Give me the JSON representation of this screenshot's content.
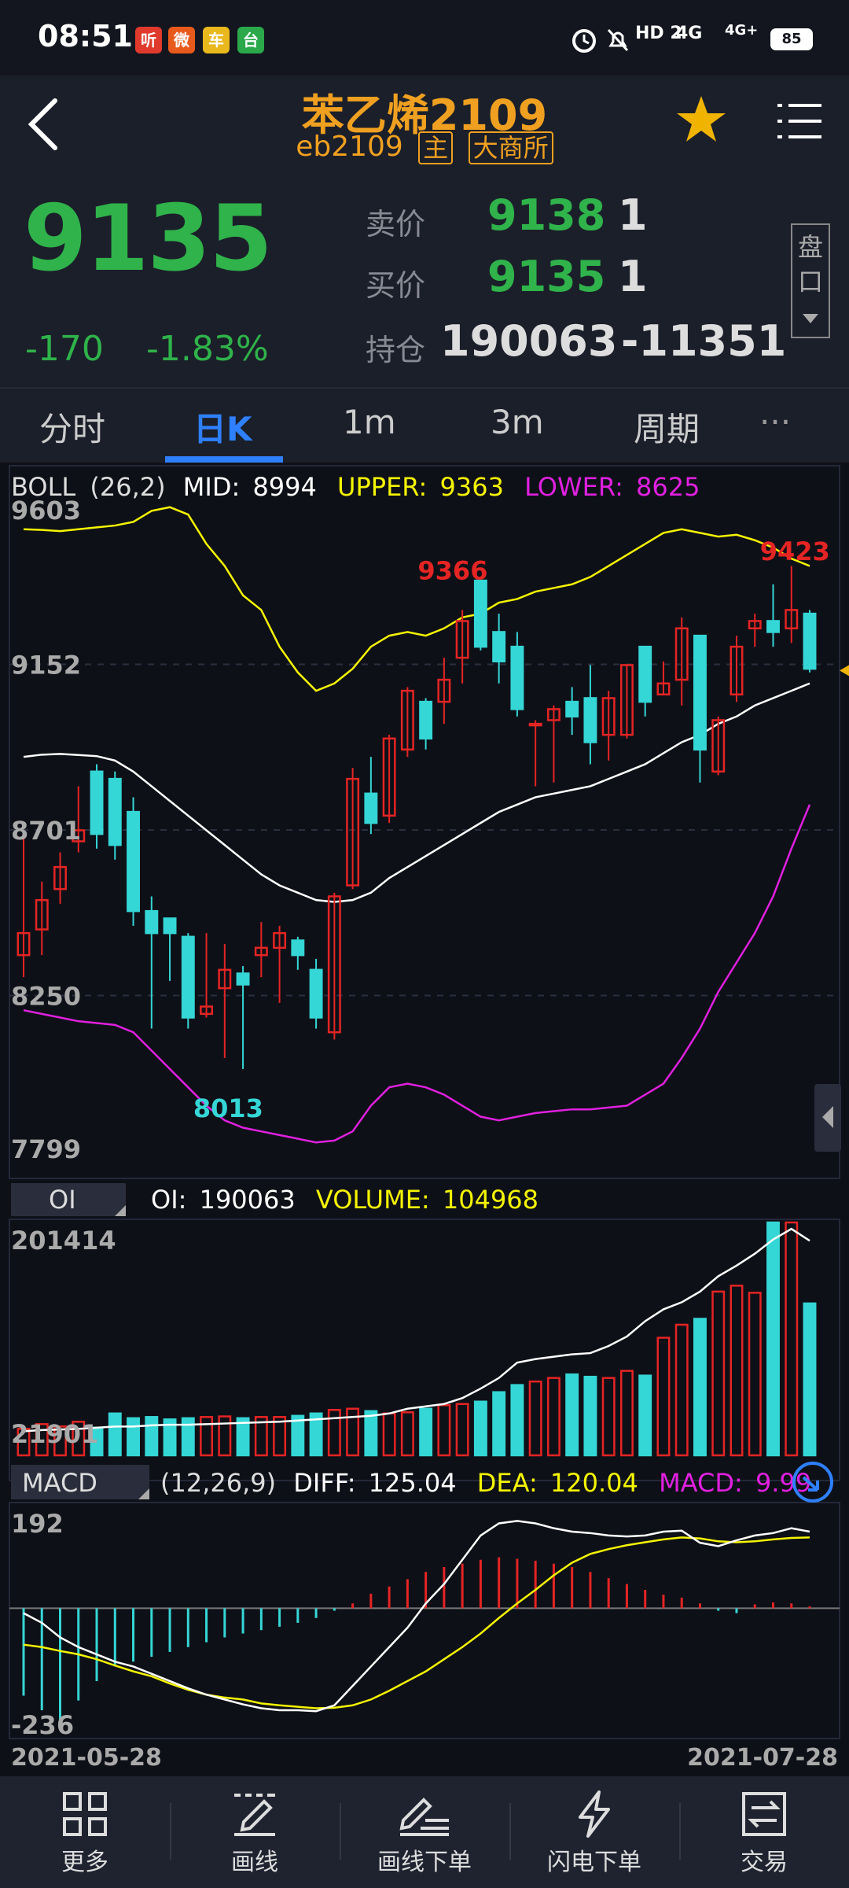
{
  "status": {
    "time": "08:51",
    "apps": [
      {
        "glyph": "听",
        "color": "#e03a2c"
      },
      {
        "glyph": "微",
        "color": "#e85a1c"
      },
      {
        "glyph": "车",
        "color": "#e8b81c"
      },
      {
        "glyph": "台",
        "color": "#2aa84a"
      }
    ],
    "hd": "HD 2",
    "net1": "4G",
    "net2": "4G+",
    "battery": "85"
  },
  "header": {
    "title": "苯乙烯2109",
    "code": "eb2109",
    "tag_main": "主",
    "tag_exchange": "大商所"
  },
  "quote": {
    "last": "9135",
    "change": "-170",
    "change_pct": "-1.83%",
    "ask_label": "卖价",
    "ask_price": "9138",
    "ask_vol": "1",
    "bid_label": "买价",
    "bid_price": "9135",
    "bid_vol": "1",
    "oi_label": "持仓",
    "oi_value": "190063",
    "oi_change": "-11351",
    "pankou": [
      "盘",
      "口"
    ]
  },
  "tabs": [
    "分时",
    "日K",
    "1m",
    "3m",
    "周期"
  ],
  "active_tab": 1,
  "tabs_more": "···",
  "chart_data": {
    "type": "candlestick",
    "x_start": "2021-05-28",
    "x_end": "2021-07-28",
    "boll": {
      "label": "BOLL",
      "params": "(26,2)",
      "mid_label": "MID:",
      "mid": "8994",
      "upper_label": "UPPER:",
      "upper": "9363",
      "lower_label": "LOWER:",
      "lower": "8625"
    },
    "price_ticks": [
      "9603",
      "9152",
      "8701",
      "8250",
      "7799"
    ],
    "ylim": [
      7799,
      9603
    ],
    "max_label": "9366",
    "max2_label": "9423",
    "min_label": "8013",
    "candles": [
      [
        8360,
        8420,
        8300,
        8680
      ],
      [
        8430,
        8510,
        8360,
        8560
      ],
      [
        8540,
        8600,
        8500,
        8640
      ],
      [
        8670,
        8700,
        8640,
        8820
      ],
      [
        8860,
        8690,
        8650,
        8880
      ],
      [
        8840,
        8660,
        8620,
        8860
      ],
      [
        8750,
        8480,
        8440,
        8790
      ],
      [
        8480,
        8420,
        8160,
        8520
      ],
      [
        8460,
        8420,
        8290,
        8460
      ],
      [
        8410,
        8190,
        8160,
        8420
      ],
      [
        8200,
        8220,
        8190,
        8420
      ],
      [
        8270,
        8320,
        8080,
        8390
      ],
      [
        8310,
        8280,
        8050,
        8330
      ],
      [
        8360,
        8380,
        8300,
        8450
      ],
      [
        8380,
        8420,
        8230,
        8440
      ],
      [
        8400,
        8360,
        8320,
        8410
      ],
      [
        8320,
        8190,
        8160,
        8350
      ],
      [
        8150,
        8520,
        8130,
        8530
      ],
      [
        8550,
        8840,
        8540,
        8870
      ],
      [
        8800,
        8720,
        8690,
        8900
      ],
      [
        8740,
        8950,
        8720,
        8960
      ],
      [
        8920,
        9080,
        8900,
        9090
      ],
      [
        9050,
        8950,
        8920,
        9060
      ],
      [
        9050,
        9110,
        8990,
        9170
      ],
      [
        9170,
        9270,
        9100,
        9300
      ],
      [
        9380,
        9200,
        9190,
        9380
      ],
      [
        9240,
        9160,
        9100,
        9290
      ],
      [
        9200,
        9030,
        9010,
        9240
      ],
      [
        8990,
        8990,
        8820,
        9000
      ],
      [
        9000,
        9030,
        8830,
        9040
      ],
      [
        9050,
        9010,
        8960,
        9090
      ],
      [
        9060,
        8940,
        8880,
        9150
      ],
      [
        8960,
        9060,
        8890,
        9080
      ],
      [
        8960,
        9150,
        8950,
        9150
      ],
      [
        9200,
        9050,
        9010,
        9200
      ],
      [
        9070,
        9100,
        9070,
        9160
      ],
      [
        9110,
        9250,
        9040,
        9280
      ],
      [
        9230,
        8920,
        8830,
        9230
      ],
      [
        8860,
        9000,
        8850,
        9010
      ],
      [
        9070,
        9200,
        9050,
        9230
      ],
      [
        9250,
        9270,
        9200,
        9290
      ],
      [
        9270,
        9240,
        9200,
        9370
      ],
      [
        9250,
        9300,
        9210,
        9420
      ],
      [
        9290,
        9140,
        9130,
        9300
      ]
    ],
    "mid_line": [
      8900,
      8906,
      8908,
      8905,
      8902,
      8890,
      8860,
      8820,
      8780,
      8740,
      8700,
      8660,
      8620,
      8580,
      8550,
      8530,
      8510,
      8505,
      8510,
      8530,
      8570,
      8600,
      8630,
      8660,
      8690,
      8720,
      8750,
      8770,
      8790,
      8800,
      8810,
      8820,
      8840,
      8860,
      8880,
      8910,
      8940,
      8960,
      8990,
      9010,
      9040,
      9060,
      9080,
      9100
    ],
    "upper_line": [
      9520,
      9518,
      9515,
      9520,
      9525,
      9530,
      9540,
      9570,
      9580,
      9560,
      9480,
      9420,
      9340,
      9300,
      9200,
      9130,
      9080,
      9100,
      9140,
      9200,
      9230,
      9240,
      9230,
      9250,
      9280,
      9290,
      9320,
      9330,
      9350,
      9360,
      9370,
      9390,
      9420,
      9450,
      9480,
      9510,
      9520,
      9510,
      9500,
      9505,
      9490,
      9470,
      9440,
      9420
    ],
    "lower_line": [
      8210,
      8200,
      8190,
      8180,
      8175,
      8170,
      8150,
      8100,
      8050,
      8000,
      7950,
      7910,
      7890,
      7880,
      7870,
      7860,
      7850,
      7855,
      7880,
      7950,
      8000,
      8010,
      8000,
      7980,
      7950,
      7920,
      7910,
      7920,
      7930,
      7935,
      7940,
      7940,
      7945,
      7950,
      7980,
      8010,
      8080,
      8160,
      8260,
      8340,
      8420,
      8520,
      8650,
      8770
    ],
    "oi": {
      "tab_label": "OI",
      "oi_label": "OI:",
      "oi_value": "190063",
      "vol_label": "VOLUME:",
      "vol_value": "104968",
      "ticks": [
        "201414",
        "21901"
      ],
      "ylim": [
        21901,
        201414
      ],
      "volume": [
        27000,
        31000,
        29000,
        33000,
        28000,
        40000,
        36000,
        37000,
        35000,
        36000,
        37000,
        37500,
        36000,
        37000,
        37000,
        38000,
        40000,
        43000,
        44000,
        42000,
        40000,
        41000,
        44000,
        47000,
        48000,
        50000,
        58000,
        64000,
        67000,
        70000,
        73000,
        71000,
        70000,
        76000,
        72000,
        104000,
        115000,
        120000,
        143000,
        148000,
        142000,
        205000,
        230000,
        133000
      ],
      "oi_line": [
        25000,
        26000,
        26500,
        27000,
        28000,
        29000,
        29000,
        30000,
        30500,
        30500,
        31000,
        31500,
        32000,
        32500,
        33000,
        34000,
        35000,
        36000,
        37000,
        38000,
        40000,
        44000,
        46000,
        48000,
        53000,
        61000,
        70000,
        83000,
        86000,
        88000,
        90000,
        91000,
        97000,
        105000,
        118000,
        128000,
        134000,
        143000,
        156000,
        165000,
        175000,
        187000,
        196000,
        186000
      ]
    },
    "macd": {
      "tab_label": "MACD",
      "params": "(12,26,9)",
      "diff_label": "DIFF:",
      "diff": "125.04",
      "dea_label": "DEA:",
      "dea": "120.04",
      "macd_label": "MACD:",
      "macd": "9.99",
      "ticks": [
        "192",
        "-236"
      ],
      "ylim": [
        -236,
        192
      ],
      "hist": [
        -180,
        -210,
        -230,
        -190,
        -150,
        -120,
        -110,
        -100,
        -90,
        -80,
        -70,
        -60,
        -52,
        -45,
        -38,
        -30,
        -20,
        -5,
        10,
        30,
        45,
        60,
        75,
        85,
        92,
        100,
        105,
        102,
        98,
        92,
        85,
        75,
        62,
        50,
        38,
        28,
        22,
        10,
        -5,
        -10,
        8,
        12,
        10,
        4
      ],
      "diff_line": [
        -10,
        -30,
        -60,
        -80,
        -95,
        -110,
        -120,
        -135,
        -150,
        -165,
        -178,
        -188,
        -198,
        -206,
        -210,
        -210,
        -212,
        -200,
        -160,
        -120,
        -80,
        -40,
        10,
        50,
        100,
        150,
        175,
        180,
        175,
        165,
        158,
        155,
        150,
        148,
        150,
        158,
        160,
        135,
        128,
        140,
        150,
        155,
        165,
        158
      ],
      "dea_line": [
        -75,
        -80,
        -88,
        -95,
        -105,
        -118,
        -130,
        -140,
        -155,
        -168,
        -178,
        -184,
        -188,
        -196,
        -200,
        -203,
        -206,
        -205,
        -200,
        -188,
        -170,
        -150,
        -130,
        -105,
        -80,
        -52,
        -20,
        10,
        38,
        68,
        94,
        112,
        122,
        130,
        136,
        142,
        146,
        144,
        138,
        136,
        138,
        142,
        145,
        146
      ]
    }
  },
  "bottom_nav": [
    "更多",
    "画线",
    "画线下单",
    "闪电下单",
    "交易"
  ]
}
